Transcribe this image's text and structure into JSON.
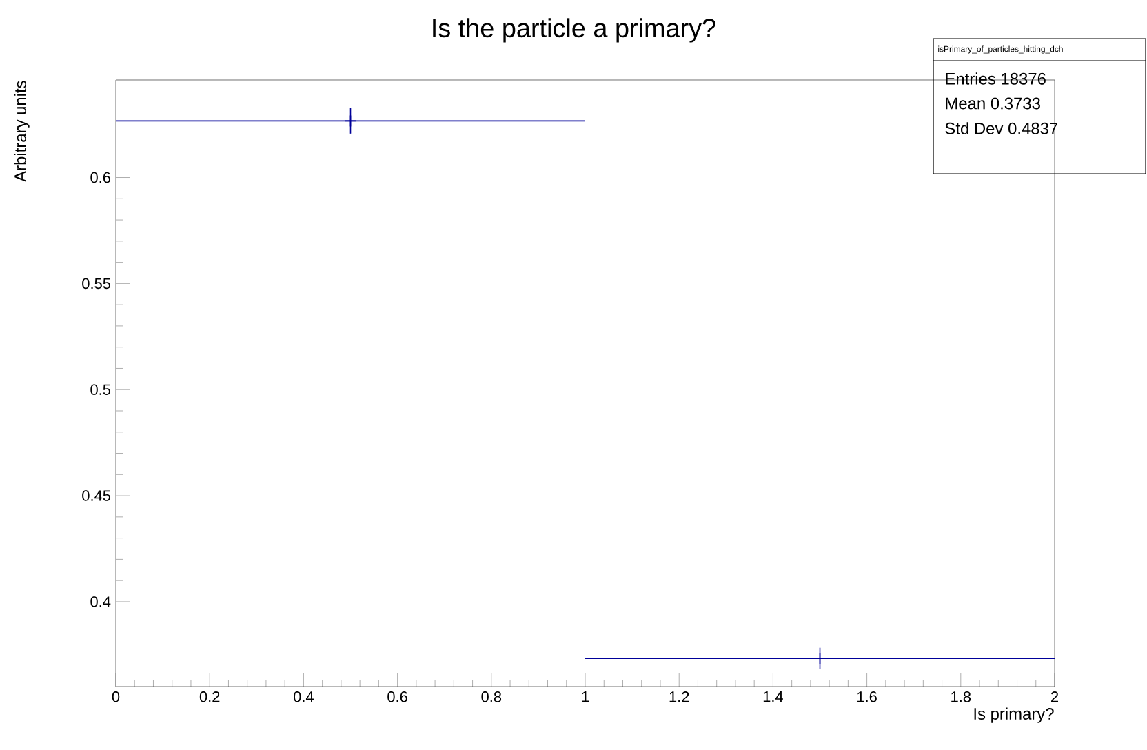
{
  "chart_data": {
    "type": "scatter",
    "title": "Is the particle a primary?",
    "xlabel": "Is primary?",
    "ylabel": "Arbitrary units",
    "x": [
      0.5,
      1.5
    ],
    "values": [
      0.6267,
      0.3733
    ],
    "xerrors": [
      0.5,
      0.5
    ],
    "errors": [
      0.006,
      0.005
    ],
    "color": "#000099",
    "marker": "cross",
    "xlim": [
      0,
      2
    ],
    "ylim": [
      0.36,
      0.646
    ],
    "xticks": [
      0,
      0.2,
      0.4,
      0.6,
      0.8,
      1,
      1.2,
      1.4,
      1.6,
      1.8,
      2
    ],
    "yticks": [
      0.4,
      0.45,
      0.5,
      0.55,
      0.6
    ],
    "grid": false,
    "annotations": [
      "isPrimary_of_particles_hitting_dch",
      "Entries 18376",
      "Mean 0.3733",
      "Std Dev 0.4837"
    ]
  }
}
